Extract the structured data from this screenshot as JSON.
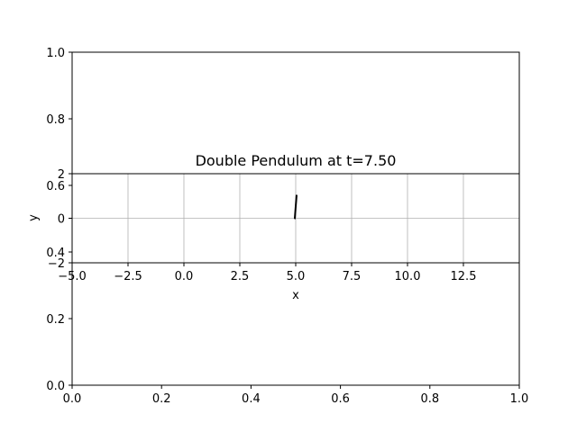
{
  "chart_data": [
    {
      "type": "line",
      "title": "",
      "xlabel": "",
      "ylabel": "",
      "xlim": [
        0.0,
        1.0
      ],
      "ylim": [
        0.0,
        1.0
      ],
      "xticks": [
        "0.0",
        "0.2",
        "0.4",
        "0.6",
        "0.8",
        "1.0"
      ],
      "yticks": [
        "0.0",
        "0.2",
        "0.4",
        "0.6",
        "0.8",
        "1.0"
      ],
      "grid": false,
      "series": []
    },
    {
      "type": "line",
      "title": "Double Pendulum at t=7.50",
      "xlabel": "x",
      "ylabel": "y",
      "xlim": [
        -5,
        15
      ],
      "ylim": [
        -2,
        2
      ],
      "xtick_values": [
        -5,
        -2.5,
        0,
        2.5,
        5,
        7.5,
        10,
        12.5
      ],
      "xticks": [
        "−5.0",
        "−2.5",
        "0.0",
        "2.5",
        "5.0",
        "7.5",
        "10.0",
        "12.5"
      ],
      "ytick_values": [
        -2,
        0,
        2
      ],
      "yticks": [
        "−2",
        "0",
        "2"
      ],
      "grid": true,
      "series": [
        {
          "x": [
            5.0,
            4.96,
            5.04
          ],
          "y": [
            0.0,
            0.0,
            1.05
          ],
          "color": "#000000"
        }
      ]
    }
  ]
}
